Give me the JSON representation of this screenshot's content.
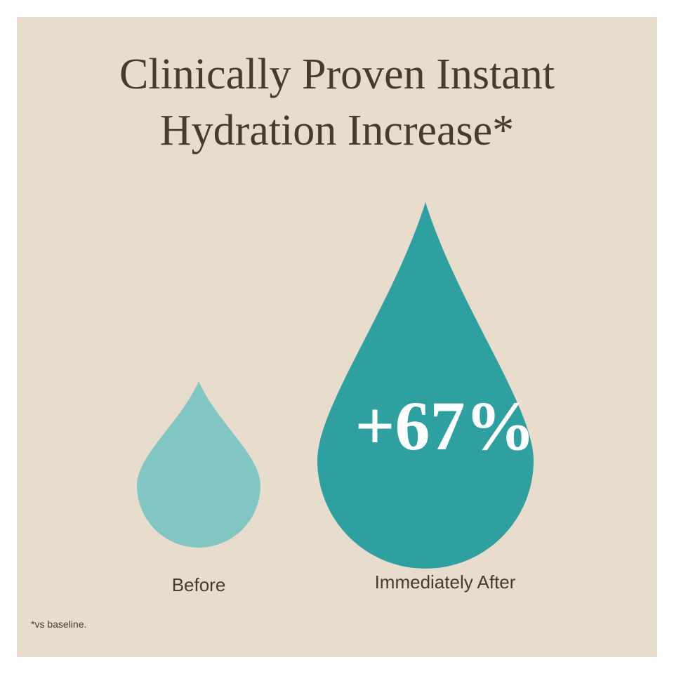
{
  "header": {
    "title_lines": [
      "Clinically Proven Instant",
      "Hydration Increase*"
    ]
  },
  "stat": {
    "text": "+67%"
  },
  "labels": {
    "before": "Before",
    "after": "Immediately After"
  },
  "footnote": "*vs baseline."
}
